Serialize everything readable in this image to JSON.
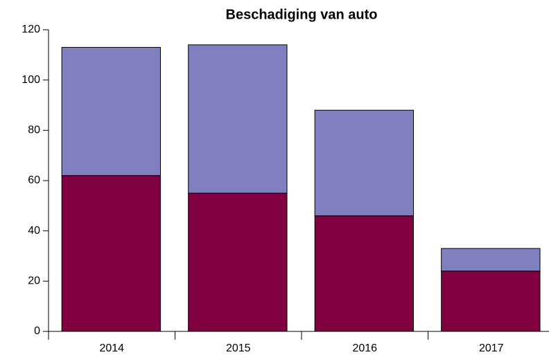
{
  "chart_data": {
    "type": "stacked_bar",
    "title": "Beschadiging van auto",
    "categories": [
      "2014",
      "2015",
      "2016",
      "2017"
    ],
    "series": [
      {
        "color": "#800040",
        "values": [
          62,
          55,
          46,
          24
        ]
      },
      {
        "color": "#8080c0",
        "values": [
          51,
          59,
          42,
          9
        ]
      }
    ],
    "ylim": [
      0,
      120
    ],
    "yticks": [
      0,
      20,
      40,
      60,
      80,
      100,
      120
    ],
    "grid": false
  }
}
